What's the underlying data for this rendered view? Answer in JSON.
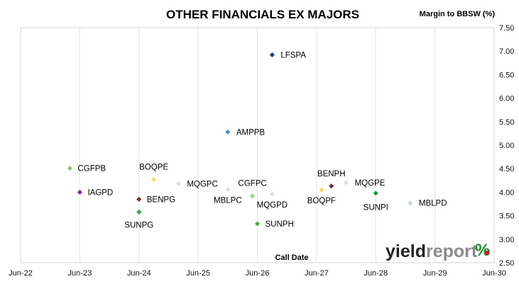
{
  "chart_data": {
    "type": "scatter",
    "title": "OTHER FINANCIALS EX MAJORS",
    "ylabel": "Margin to BBSW (%)",
    "xlabel": "Call Date",
    "x_ticks": [
      "Jun-22",
      "Jun-23",
      "Jun-24",
      "Jun-25",
      "Jun-26",
      "Jun-27",
      "Jun-28",
      "Jun-29",
      "Jun-30"
    ],
    "y_ticks": [
      "2.50",
      "3.00",
      "3.50",
      "4.00",
      "4.50",
      "5.00",
      "5.50",
      "6.00",
      "6.50",
      "7.00",
      "7.50"
    ],
    "xlim": [
      "Jun-22",
      "Jun-30"
    ],
    "ylim": [
      2.5,
      7.5
    ],
    "grid": "vertical",
    "points": [
      {
        "label": "LFSPA",
        "x": "Sep-26",
        "y": 6.92,
        "color": "#1f3d7a"
      },
      {
        "label": "AMPPB",
        "x": "Dec-25",
        "y": 5.28,
        "color": "#4a90c8"
      },
      {
        "label": "CGFPB",
        "x": "Apr-23",
        "y": 4.51,
        "color": "#8cc47a"
      },
      {
        "label": "IAGPD",
        "x": "Jun-23",
        "y": 4.0,
        "color": "#7a2fa8"
      },
      {
        "label": "BOQPE",
        "x": "Sep-24",
        "y": 4.27,
        "color": "#f0e060"
      },
      {
        "label": "MQGPC",
        "x": "Feb-25",
        "y": 4.18,
        "color": "#d4dff0"
      },
      {
        "label": "BENPG",
        "x": "Jun-24",
        "y": 3.85,
        "color": "#7a2e2e"
      },
      {
        "label": "SUNPG",
        "x": "Jun-24",
        "y": 3.58,
        "color": "#2ea84a"
      },
      {
        "label": "MBLPC",
        "x": "Dec-25",
        "y": 4.06,
        "color": "#d4dff0"
      },
      {
        "label": "CGFPC",
        "x": "May-26",
        "y": 3.92,
        "color": "#a8d090"
      },
      {
        "label": "MQGPD",
        "x": "Sep-26",
        "y": 3.96,
        "color": "#d4dff0"
      },
      {
        "label": "SUNPH",
        "x": "Jun-26",
        "y": 3.33,
        "color": "#5aa040"
      },
      {
        "label": "BENPH",
        "x": "Sep-27",
        "y": 4.13,
        "color": "#7a2e2e"
      },
      {
        "label": "BOQPF",
        "x": "Jul-27",
        "y": 4.05,
        "color": "#f0e060"
      },
      {
        "label": "MQGPE",
        "x": "Dec-27",
        "y": 4.2,
        "color": "#d4dff0"
      },
      {
        "label": "SUNPI",
        "x": "Jun-28",
        "y": 3.98,
        "color": "#1a9a2a"
      },
      {
        "label": "MBLPD",
        "x": "Jan-29",
        "y": 3.77,
        "color": "#c8d4ec"
      }
    ]
  },
  "logo": {
    "text_dark": "yield",
    "text_light": "report",
    "symbol": "%"
  }
}
